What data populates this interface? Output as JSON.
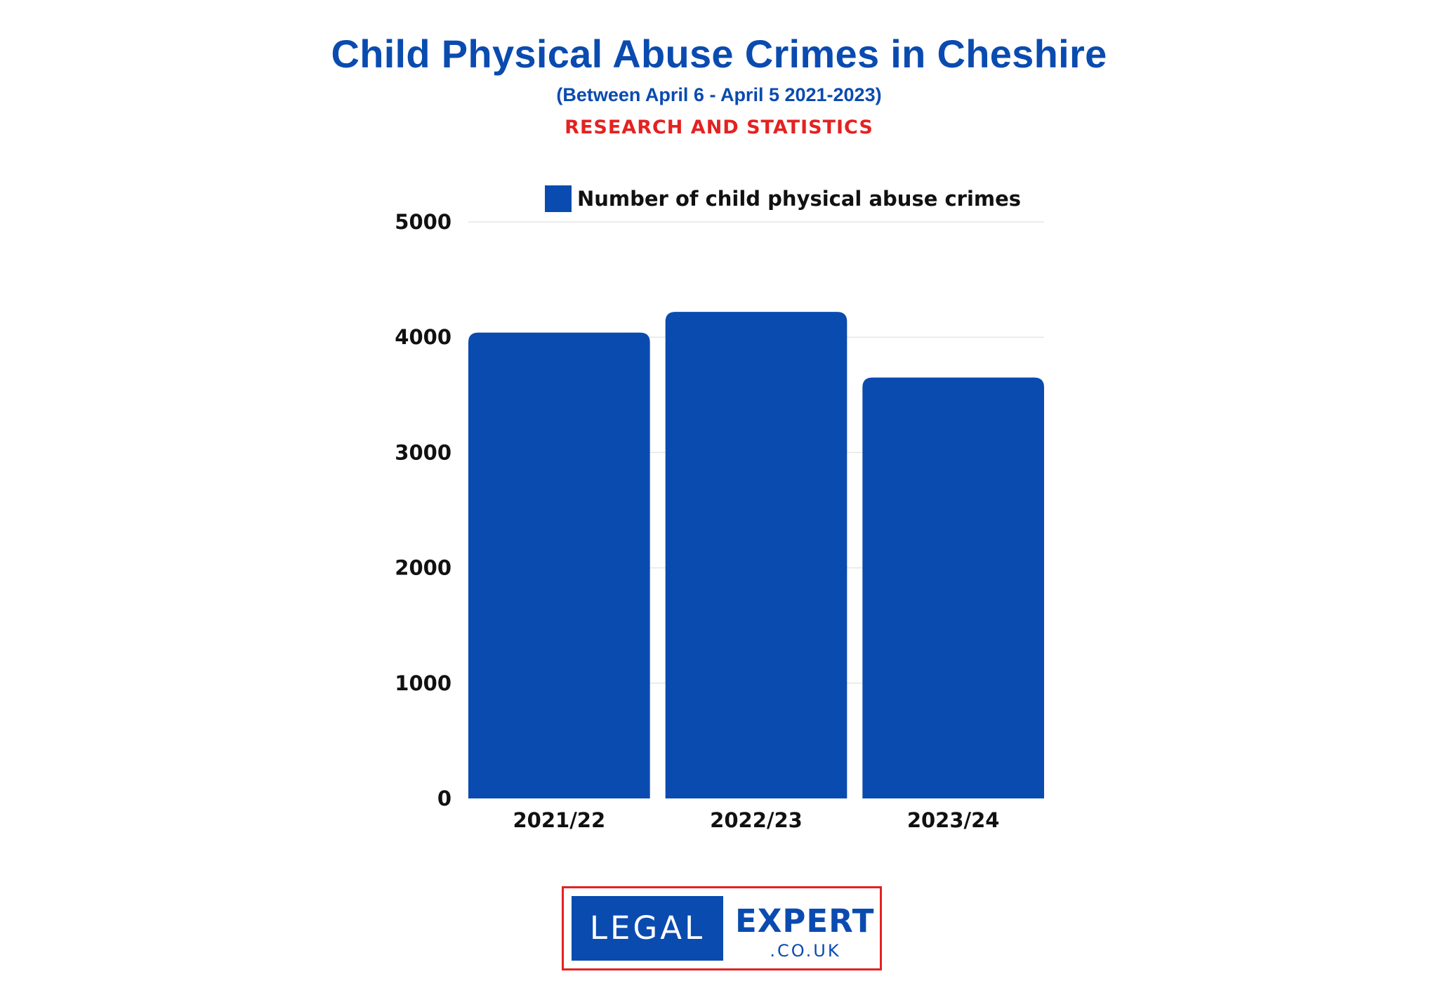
{
  "header": {
    "title": "Child Physical Abuse Crimes in Cheshire",
    "subtitle": "(Between April 6 - April 5 2021-2023)",
    "tagline": "RESEARCH AND STATISTICS"
  },
  "colors": {
    "brand_blue": "#0a4bb0",
    "accent_red": "#e32222",
    "grid": "#e6e6e6"
  },
  "chart_data": {
    "type": "bar",
    "categories": [
      "2021/22",
      "2022/23",
      "2023/24"
    ],
    "series": [
      {
        "name": "Number of child physical abuse crimes",
        "values": [
          4040,
          4220,
          3650
        ],
        "color": "#0a4bb0"
      }
    ],
    "ylim": [
      0,
      5000
    ],
    "yticks": [
      0,
      1000,
      2000,
      3000,
      4000,
      5000
    ],
    "title": "Child Physical Abuse Crimes in Cheshire",
    "subtitle": "(Between April 6 - April 5 2021-2023)",
    "xlabel": "",
    "ylabel": "",
    "grid": true,
    "legend_position": "top"
  },
  "logo": {
    "left_text": "LEGAL",
    "right_text": "EXPERT",
    "domain_text": ".CO.UK"
  }
}
